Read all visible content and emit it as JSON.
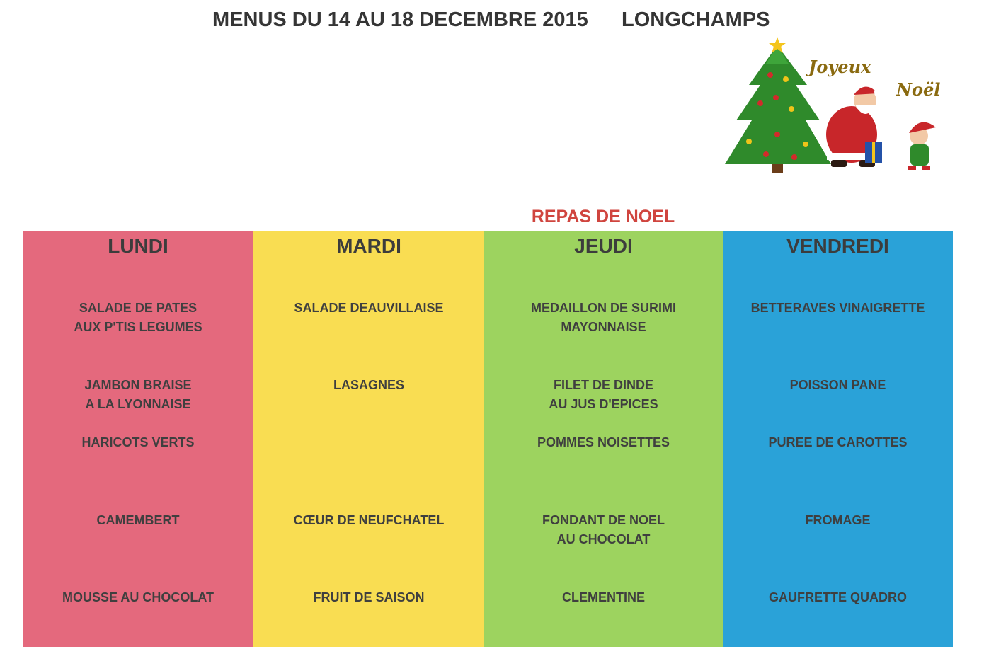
{
  "header": {
    "title": "MENUS DU 14 AU 18 DECEMBRE 2015",
    "place": "LONGCHAMPS"
  },
  "greeting": {
    "line1": "Joyeux",
    "line2": "Noël"
  },
  "special_label": "REPAS DE NOEL",
  "colors": {
    "lundi": "#e4697d",
    "mardi": "#f9dd52",
    "jeudi": "#9dd35f",
    "vendredi": "#2aa2d8",
    "special_label": "#d0453f"
  },
  "columns": [
    {
      "day": "LUNDI",
      "dishes": [
        "SALADE DE PATES\nAUX P'TIS LEGUMES",
        "JAMBON BRAISE\nA LA LYONNAISE",
        "HARICOTS VERTS",
        "CAMEMBERT",
        "MOUSSE AU CHOCOLAT"
      ]
    },
    {
      "day": "MARDI",
      "dishes": [
        "SALADE DEAUVILLAISE",
        "LASAGNES",
        "",
        "CŒUR DE NEUFCHATEL",
        "FRUIT DE SAISON"
      ]
    },
    {
      "day": "JEUDI",
      "dishes": [
        "MEDAILLON DE SURIMI\nMAYONNAISE",
        "FILET DE DINDE\nAU JUS D'EPICES",
        "POMMES NOISETTES",
        "FONDANT DE NOEL\nAU CHOCOLAT",
        "CLEMENTINE"
      ]
    },
    {
      "day": "VENDREDI",
      "dishes": [
        "BETTERAVES VINAIGRETTE",
        "POISSON PANE",
        "PUREE DE CAROTTES",
        "FROMAGE",
        "GAUFRETTE QUADRO"
      ]
    }
  ]
}
